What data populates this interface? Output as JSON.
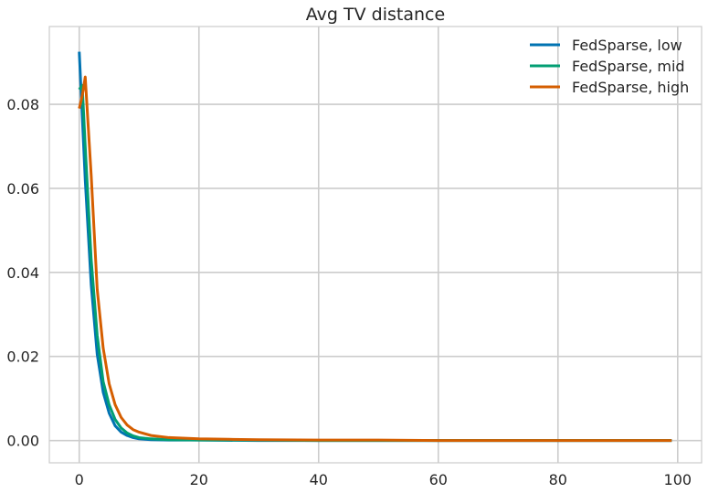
{
  "chart_data": {
    "type": "line",
    "title": "Avg TV distance",
    "xlabel": "",
    "ylabel": "",
    "xlim": [
      -5,
      104
    ],
    "ylim": [
      -0.0053,
      0.0985
    ],
    "x_ticks": [
      0,
      20,
      40,
      60,
      80,
      100
    ],
    "x_tick_labels": [
      "0",
      "20",
      "40",
      "60",
      "80",
      "100"
    ],
    "y_ticks": [
      0.0,
      0.02,
      0.04,
      0.06,
      0.08
    ],
    "y_tick_labels": [
      "0.00",
      "0.02",
      "0.04",
      "0.06",
      "0.08"
    ],
    "grid": true,
    "legend_position": "top-right",
    "series": [
      {
        "name": "FedSparse, low",
        "color": "#0173b2",
        "x": [
          0,
          1,
          2,
          3,
          4,
          5,
          6,
          7,
          8,
          9,
          10,
          12,
          15,
          20,
          30,
          40,
          50,
          60,
          70,
          80,
          90,
          99
        ],
        "y": [
          0.0925,
          0.062,
          0.037,
          0.0205,
          0.0115,
          0.0065,
          0.0035,
          0.002,
          0.0012,
          0.0007,
          0.0004,
          0.0002,
          0.0001,
          0.0001,
          0.0,
          0.0,
          0.0,
          0.0,
          0.0,
          0.0,
          0.0,
          0.0
        ]
      },
      {
        "name": "FedSparse, mid",
        "color": "#029e73",
        "x": [
          0,
          0.5,
          1,
          2,
          3,
          4,
          5,
          6,
          7,
          8,
          9,
          10,
          12,
          15,
          20,
          30,
          40,
          50,
          60,
          70,
          80,
          90,
          99
        ],
        "y": [
          0.0835,
          0.0845,
          0.07,
          0.043,
          0.025,
          0.014,
          0.0085,
          0.005,
          0.003,
          0.0018,
          0.0011,
          0.0007,
          0.0004,
          0.0002,
          0.0001,
          0.0001,
          0.0,
          0.0,
          0.0,
          0.0,
          0.0,
          0.0,
          0.0
        ]
      },
      {
        "name": "FedSparse, high",
        "color": "#d55e00",
        "x": [
          0,
          0.5,
          1,
          2,
          3,
          4,
          5,
          6,
          7,
          8,
          9,
          10,
          12,
          15,
          20,
          25,
          30,
          40,
          50,
          60,
          70,
          80,
          90,
          99
        ],
        "y": [
          0.079,
          0.082,
          0.0865,
          0.063,
          0.036,
          0.022,
          0.0135,
          0.0085,
          0.0055,
          0.0037,
          0.0026,
          0.002,
          0.0012,
          0.0007,
          0.0004,
          0.0003,
          0.0002,
          0.0001,
          0.0001,
          0.0,
          0.0,
          0.0,
          0.0,
          0.0
        ]
      }
    ]
  }
}
